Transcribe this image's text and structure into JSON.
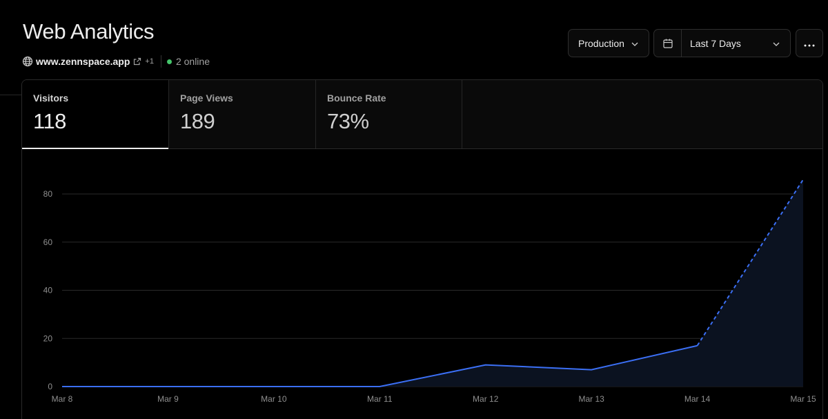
{
  "header": {
    "title": "Web Analytics",
    "domain": "www.zennspace.app",
    "extra_domains": "+1",
    "online": "2 online"
  },
  "controls": {
    "environment": "Production",
    "range": "Last 7 Days"
  },
  "tabs": [
    {
      "label": "Visitors",
      "value": "118",
      "active": true
    },
    {
      "label": "Page Views",
      "value": "189",
      "active": false
    },
    {
      "label": "Bounce Rate",
      "value": "73%",
      "active": false
    }
  ],
  "chart_data": {
    "type": "area",
    "x": [
      "Mar 8",
      "Mar 9",
      "Mar 10",
      "Mar 11",
      "Mar 12",
      "Mar 13",
      "Mar 14",
      "Mar 15"
    ],
    "series": [
      {
        "values": [
          0,
          0,
          0,
          0,
          9,
          7,
          17,
          86
        ]
      }
    ],
    "projected_from_index": 6,
    "yticks": [
      0,
      20,
      40,
      60,
      80
    ],
    "ylim": [
      0,
      80
    ],
    "grid": true,
    "colors": {
      "line": "#3b6ff5",
      "fill": "#0b1220",
      "grid": "#2a2a2a",
      "tick": "#8f8f8f"
    }
  }
}
